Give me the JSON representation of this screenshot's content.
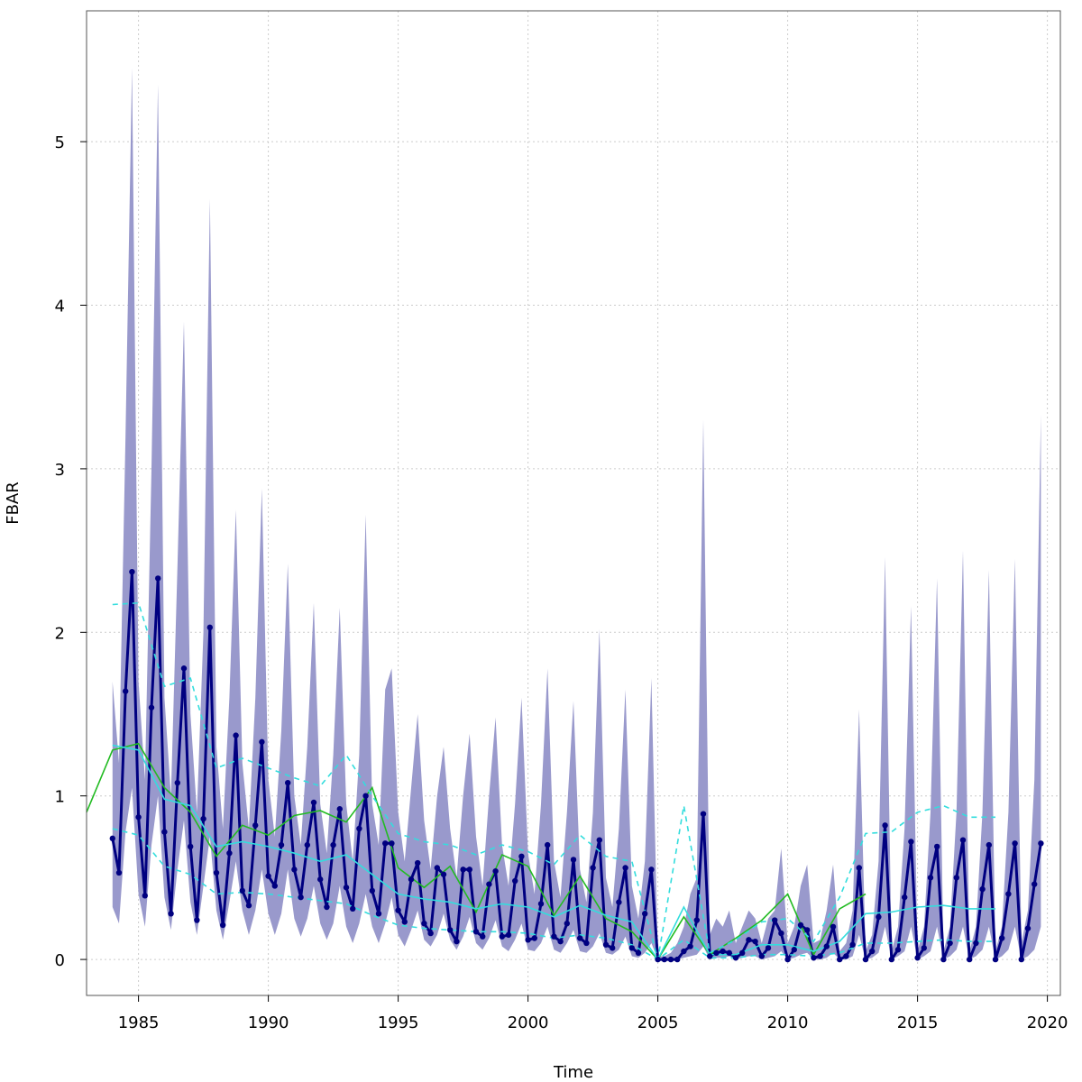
{
  "chart_data": {
    "type": "line",
    "title": "",
    "xlabel": "Time",
    "ylabel": "FBAR",
    "xlim": [
      1983,
      2020.5
    ],
    "ylim": [
      -0.22,
      5.8
    ],
    "x_ticks": [
      1985,
      1990,
      1995,
      2000,
      2005,
      2010,
      2015,
      2020
    ],
    "y_ticks": [
      0,
      1,
      2,
      3,
      4,
      5
    ],
    "grid": true,
    "legend": "none",
    "colors": {
      "band": "#9999cc",
      "quarterly": "#000080",
      "annual_green": "#22bb22",
      "cyan": "#33dddd"
    },
    "series": [
      {
        "kind": "band",
        "x": [
          1984.0,
          1984.25,
          1984.5,
          1984.75,
          1985.0,
          1985.25,
          1985.5,
          1985.75,
          1986.0,
          1986.25,
          1986.5,
          1986.75,
          1987.0,
          1987.25,
          1987.5,
          1987.75,
          1988.0,
          1988.25,
          1988.5,
          1988.75,
          1989.0,
          1989.25,
          1989.5,
          1989.75,
          1990.0,
          1990.25,
          1990.5,
          1990.75,
          1991.0,
          1991.25,
          1991.5,
          1991.75,
          1992.0,
          1992.25,
          1992.5,
          1992.75,
          1993.0,
          1993.25,
          1993.5,
          1993.75,
          1994.0,
          1994.25,
          1994.5,
          1994.75,
          1995.0,
          1995.25,
          1995.5,
          1995.75,
          1996.0,
          1996.25,
          1996.5,
          1996.75,
          1997.0,
          1997.25,
          1997.5,
          1997.75,
          1998.0,
          1998.25,
          1998.5,
          1998.75,
          1999.0,
          1999.25,
          1999.5,
          1999.75,
          2000.0,
          2000.25,
          2000.5,
          2000.75,
          2001.0,
          2001.25,
          2001.5,
          2001.75,
          2002.0,
          2002.25,
          2002.5,
          2002.75,
          2003.0,
          2003.25,
          2003.5,
          2003.75,
          2004.0,
          2004.25,
          2004.5,
          2004.75,
          2005.0,
          2005.25,
          2005.5,
          2005.75,
          2006.0,
          2006.25,
          2006.5,
          2006.75,
          2007.0,
          2007.25,
          2007.5,
          2007.75,
          2008.0,
          2008.25,
          2008.5,
          2008.75,
          2009.0,
          2009.25,
          2009.5,
          2009.75,
          2010.0,
          2010.25,
          2010.5,
          2010.75,
          2011.0,
          2011.25,
          2011.5,
          2011.75,
          2012.0,
          2012.25,
          2012.5,
          2012.75,
          2013.0,
          2013.25,
          2013.5,
          2013.75,
          2014.0,
          2014.25,
          2014.5,
          2014.75,
          2015.0,
          2015.25,
          2015.5,
          2015.75,
          2016.0,
          2016.25,
          2016.5,
          2016.75,
          2017.0,
          2017.25,
          2017.5,
          2017.75,
          2018.0,
          2018.25,
          2018.5,
          2018.75,
          2019.0,
          2019.25,
          2019.5,
          2019.75
        ],
        "lower": [
          0.32,
          0.22,
          0.78,
          1.05,
          0.4,
          0.2,
          0.7,
          1.0,
          0.38,
          0.18,
          0.55,
          0.85,
          0.35,
          0.15,
          0.45,
          0.75,
          0.3,
          0.12,
          0.35,
          0.6,
          0.3,
          0.15,
          0.3,
          0.55,
          0.28,
          0.15,
          0.28,
          0.55,
          0.25,
          0.14,
          0.25,
          0.45,
          0.22,
          0.12,
          0.22,
          0.45,
          0.2,
          0.1,
          0.22,
          0.4,
          0.2,
          0.1,
          0.22,
          0.38,
          0.15,
          0.08,
          0.18,
          0.3,
          0.12,
          0.08,
          0.15,
          0.28,
          0.12,
          0.06,
          0.14,
          0.26,
          0.1,
          0.06,
          0.13,
          0.24,
          0.08,
          0.05,
          0.12,
          0.22,
          0.06,
          0.05,
          0.1,
          0.2,
          0.06,
          0.04,
          0.1,
          0.18,
          0.05,
          0.04,
          0.08,
          0.16,
          0.04,
          0.03,
          0.06,
          0.14,
          0.02,
          0.01,
          0.04,
          0.1,
          0.0,
          0.0,
          0.0,
          0.0,
          0.01,
          0.02,
          0.03,
          0.08,
          0.0,
          0.01,
          0.01,
          0.02,
          0.0,
          0.01,
          0.02,
          0.02,
          0.0,
          0.01,
          0.02,
          0.05,
          0.0,
          0.01,
          0.03,
          0.04,
          0.0,
          0.0,
          0.01,
          0.04,
          0.0,
          0.0,
          0.02,
          0.15,
          0.0,
          0.01,
          0.04,
          0.2,
          0.0,
          0.02,
          0.05,
          0.2,
          0.0,
          0.02,
          0.05,
          0.2,
          0.0,
          0.02,
          0.06,
          0.2,
          0.0,
          0.02,
          0.06,
          0.2,
          0.0,
          0.02,
          0.06,
          0.2,
          0.0,
          0.02,
          0.06,
          0.2
        ],
        "upper": [
          1.7,
          1.2,
          3.2,
          5.45,
          1.7,
          1.1,
          3.0,
          5.35,
          1.6,
          1.0,
          2.4,
          3.9,
          1.5,
          0.9,
          2.0,
          4.65,
          1.3,
          0.8,
          1.6,
          2.75,
          1.2,
          0.8,
          1.6,
          2.88,
          1.1,
          0.75,
          1.4,
          2.42,
          1.0,
          0.7,
          1.3,
          2.18,
          0.95,
          0.65,
          1.25,
          2.15,
          0.95,
          0.6,
          1.25,
          2.72,
          0.95,
          0.7,
          1.65,
          1.78,
          0.9,
          0.6,
          1.05,
          1.5,
          0.85,
          0.55,
          1.0,
          1.3,
          0.8,
          0.5,
          1.0,
          1.38,
          0.75,
          0.45,
          1.0,
          1.48,
          0.7,
          0.45,
          0.95,
          1.6,
          0.65,
          0.4,
          0.95,
          1.78,
          0.6,
          0.38,
          0.9,
          1.58,
          0.55,
          0.35,
          0.9,
          2.02,
          0.5,
          0.32,
          0.8,
          1.65,
          0.45,
          0.25,
          0.6,
          1.72,
          0.02,
          0.02,
          0.04,
          0.1,
          0.2,
          0.4,
          0.5,
          3.3,
          0.15,
          0.25,
          0.2,
          0.3,
          0.1,
          0.2,
          0.3,
          0.25,
          0.1,
          0.25,
          0.3,
          0.68,
          0.1,
          0.2,
          0.45,
          0.58,
          0.1,
          0.12,
          0.3,
          0.58,
          0.05,
          0.1,
          0.3,
          1.53,
          0.05,
          0.15,
          0.6,
          2.46,
          0.05,
          0.2,
          0.8,
          2.16,
          0.05,
          0.2,
          0.9,
          2.33,
          0.05,
          0.2,
          0.9,
          2.5,
          0.05,
          0.2,
          0.9,
          2.38,
          0.05,
          0.2,
          0.9,
          2.45,
          0.1,
          0.3,
          1.1,
          3.33
        ]
      },
      {
        "kind": "quarterly",
        "x": [
          1984.0,
          1984.25,
          1984.5,
          1984.75,
          1985.0,
          1985.25,
          1985.5,
          1985.75,
          1986.0,
          1986.25,
          1986.5,
          1986.75,
          1987.0,
          1987.25,
          1987.5,
          1987.75,
          1988.0,
          1988.25,
          1988.5,
          1988.75,
          1989.0,
          1989.25,
          1989.5,
          1989.75,
          1990.0,
          1990.25,
          1990.5,
          1990.75,
          1991.0,
          1991.25,
          1991.5,
          1991.75,
          1992.0,
          1992.25,
          1992.5,
          1992.75,
          1993.0,
          1993.25,
          1993.5,
          1993.75,
          1994.0,
          1994.25,
          1994.5,
          1994.75,
          1995.0,
          1995.25,
          1995.5,
          1995.75,
          1996.0,
          1996.25,
          1996.5,
          1996.75,
          1997.0,
          1997.25,
          1997.5,
          1997.75,
          1998.0,
          1998.25,
          1998.5,
          1998.75,
          1999.0,
          1999.25,
          1999.5,
          1999.75,
          2000.0,
          2000.25,
          2000.5,
          2000.75,
          2001.0,
          2001.25,
          2001.5,
          2001.75,
          2002.0,
          2002.25,
          2002.5,
          2002.75,
          2003.0,
          2003.25,
          2003.5,
          2003.75,
          2004.0,
          2004.25,
          2004.5,
          2004.75,
          2005.0,
          2005.25,
          2005.5,
          2005.75,
          2006.0,
          2006.25,
          2006.5,
          2006.75,
          2007.0,
          2007.25,
          2007.5,
          2007.75,
          2008.0,
          2008.25,
          2008.5,
          2008.75,
          2009.0,
          2009.25,
          2009.5,
          2009.75,
          2010.0,
          2010.25,
          2010.5,
          2010.75,
          2011.0,
          2011.25,
          2011.5,
          2011.75,
          2012.0,
          2012.25,
          2012.5,
          2012.75,
          2013.0,
          2013.25,
          2013.5,
          2013.75,
          2014.0,
          2014.25,
          2014.5,
          2014.75,
          2015.0,
          2015.25,
          2015.5,
          2015.75,
          2016.0,
          2016.25,
          2016.5,
          2016.75,
          2017.0,
          2017.25,
          2017.5,
          2017.75,
          2018.0,
          2018.25,
          2018.5,
          2018.75,
          2019.0,
          2019.25,
          2019.5,
          2019.75
        ],
        "values": [
          0.74,
          0.53,
          1.64,
          2.37,
          0.87,
          0.39,
          1.54,
          2.33,
          0.78,
          0.28,
          1.08,
          1.78,
          0.69,
          0.24,
          0.86,
          2.03,
          0.53,
          0.21,
          0.65,
          1.37,
          0.42,
          0.33,
          0.82,
          1.33,
          0.51,
          0.45,
          0.7,
          1.08,
          0.55,
          0.38,
          0.7,
          0.96,
          0.49,
          0.32,
          0.7,
          0.92,
          0.44,
          0.31,
          0.8,
          1.0,
          0.42,
          0.28,
          0.71,
          0.71,
          0.3,
          0.23,
          0.49,
          0.59,
          0.22,
          0.16,
          0.56,
          0.52,
          0.18,
          0.11,
          0.55,
          0.55,
          0.17,
          0.14,
          0.46,
          0.54,
          0.14,
          0.15,
          0.48,
          0.63,
          0.12,
          0.13,
          0.34,
          0.7,
          0.14,
          0.11,
          0.22,
          0.61,
          0.13,
          0.1,
          0.56,
          0.73,
          0.09,
          0.07,
          0.35,
          0.56,
          0.07,
          0.04,
          0.28,
          0.55,
          0.0,
          0.0,
          0.0,
          0.0,
          0.05,
          0.08,
          0.24,
          0.89,
          0.02,
          0.04,
          0.05,
          0.04,
          0.01,
          0.04,
          0.12,
          0.11,
          0.02,
          0.07,
          0.24,
          0.16,
          0.0,
          0.06,
          0.21,
          0.18,
          0.01,
          0.02,
          0.08,
          0.2,
          0.0,
          0.02,
          0.09,
          0.56,
          0.0,
          0.05,
          0.26,
          0.82,
          0.0,
          0.06,
          0.38,
          0.72,
          0.01,
          0.07,
          0.5,
          0.69,
          0.0,
          0.1,
          0.5,
          0.73,
          0.0,
          0.1,
          0.43,
          0.7,
          0.0,
          0.13,
          0.4,
          0.71,
          0.0,
          0.19,
          0.46,
          0.71
        ]
      },
      {
        "kind": "annual_green",
        "x": [
          1983.0,
          1984.0,
          1985.0,
          1986.0,
          1987.0,
          1988.0,
          1989.0,
          1990.0,
          1991.0,
          1992.0,
          1993.0,
          1994.0,
          1995.0,
          1996.0,
          1997.0,
          1998.0,
          1999.0,
          2000.0,
          2001.0,
          2002.0,
          2003.0,
          2004.0,
          2005.0,
          2006.0,
          2007.0,
          2008.0,
          2009.0,
          2010.0,
          2011.0,
          2012.0,
          2013.0
        ],
        "values": [
          0.9,
          1.28,
          1.32,
          1.05,
          0.9,
          0.63,
          0.82,
          0.76,
          0.88,
          0.91,
          0.84,
          1.05,
          0.56,
          0.44,
          0.57,
          0.29,
          0.64,
          0.57,
          0.27,
          0.51,
          0.25,
          0.17,
          0.0,
          0.26,
          0.03,
          0.13,
          0.24,
          0.4,
          0.03,
          0.31,
          0.4
        ]
      },
      {
        "kind": "cyan_mid",
        "x": [
          1984.0,
          1985.0,
          1986.0,
          1987.0,
          1988.0,
          1989.0,
          1990.0,
          1991.0,
          1992.0,
          1993.0,
          1994.0,
          1995.0,
          1996.0,
          1997.0,
          1998.0,
          1999.0,
          2000.0,
          2001.0,
          2002.0,
          2003.0,
          2004.0,
          2005.0,
          2006.0,
          2007.0,
          2008.0,
          2009.0,
          2010.0,
          2011.0,
          2012.0,
          2013.0,
          2014.0,
          2015.0,
          2016.0,
          2017.0,
          2018.0
        ],
        "values": [
          1.31,
          1.28,
          0.98,
          0.94,
          0.69,
          0.72,
          0.69,
          0.65,
          0.6,
          0.64,
          0.52,
          0.4,
          0.37,
          0.35,
          0.31,
          0.34,
          0.32,
          0.26,
          0.33,
          0.27,
          0.23,
          0.0,
          0.32,
          0.03,
          0.03,
          0.09,
          0.09,
          0.05,
          0.11,
          0.28,
          0.29,
          0.32,
          0.33,
          0.31,
          0.31
        ]
      },
      {
        "kind": "cyan_upper_dashed",
        "x": [
          1984.0,
          1985.0,
          1986.0,
          1987.0,
          1988.0,
          1989.0,
          1990.0,
          1991.0,
          1992.0,
          1993.0,
          1994.0,
          1995.0,
          1996.0,
          1997.0,
          1998.0,
          1999.0,
          2000.0,
          2001.0,
          2002.0,
          2003.0,
          2004.0,
          2005.0,
          2006.0,
          2007.0,
          2008.0,
          2009.0,
          2010.0,
          2011.0,
          2012.0,
          2013.0,
          2014.0,
          2015.0,
          2016.0,
          2017.0,
          2018.0
        ],
        "values": [
          2.17,
          2.18,
          1.67,
          1.72,
          1.17,
          1.23,
          1.17,
          1.11,
          1.06,
          1.25,
          1.0,
          0.77,
          0.72,
          0.7,
          0.64,
          0.7,
          0.66,
          0.58,
          0.76,
          0.63,
          0.6,
          0.0,
          0.94,
          0.04,
          0.12,
          0.23,
          0.25,
          0.11,
          0.38,
          0.77,
          0.78,
          0.9,
          0.94,
          0.87,
          0.87
        ]
      },
      {
        "kind": "cyan_lower_dashed",
        "x": [
          1984.0,
          1985.0,
          1986.0,
          1987.0,
          1988.0,
          1989.0,
          1990.0,
          1991.0,
          1992.0,
          1993.0,
          1994.0,
          1995.0,
          1996.0,
          1997.0,
          1998.0,
          1999.0,
          2000.0,
          2001.0,
          2002.0,
          2003.0,
          2004.0,
          2005.0,
          2006.0,
          2007.0,
          2008.0,
          2009.0,
          2010.0,
          2011.0,
          2012.0,
          2013.0,
          2014.0,
          2015.0,
          2016.0,
          2017.0,
          2018.0
        ],
        "values": [
          0.8,
          0.76,
          0.57,
          0.52,
          0.4,
          0.41,
          0.4,
          0.38,
          0.36,
          0.34,
          0.27,
          0.21,
          0.19,
          0.18,
          0.17,
          0.17,
          0.16,
          0.13,
          0.15,
          0.13,
          0.09,
          0.0,
          0.12,
          0.01,
          0.01,
          0.03,
          0.03,
          0.02,
          0.04,
          0.1,
          0.1,
          0.11,
          0.12,
          0.11,
          0.11
        ]
      }
    ]
  }
}
